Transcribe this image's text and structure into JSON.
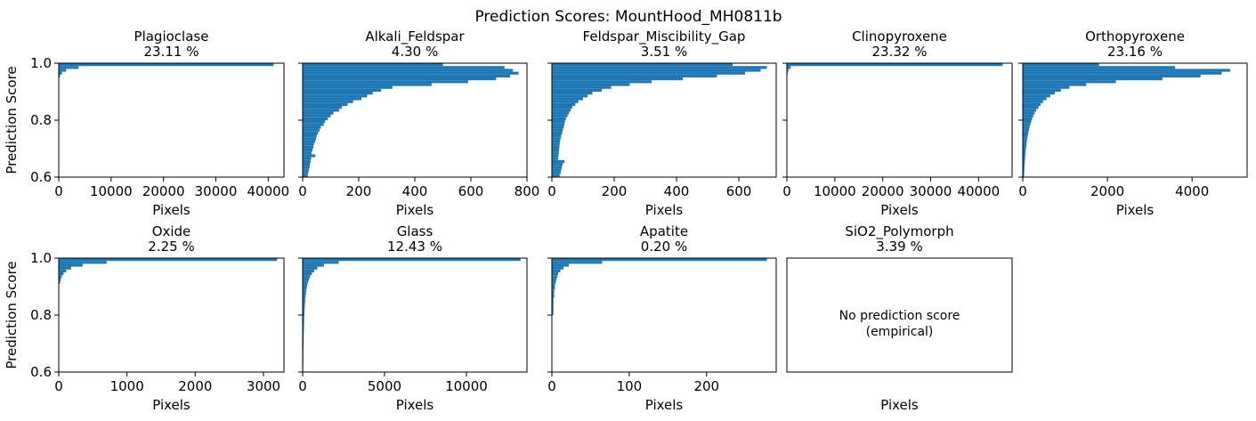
{
  "figure": {
    "suptitle": "Prediction Scores: MountHood_MH0811b",
    "color": "#1f77b4",
    "ylabel": "Prediction Score",
    "xlabel": "Pixels"
  },
  "chart_data": [
    {
      "type": "bar",
      "orientation": "horizontal",
      "title": "Plagioclase",
      "percent": "23.11 %",
      "xlabel": "Pixels",
      "ylabel": "Prediction Score",
      "ylim": [
        0.6,
        1.0
      ],
      "xlim": [
        0,
        43000
      ],
      "xticks": [
        0,
        10000,
        20000,
        30000,
        40000
      ],
      "yticks": [
        0.6,
        0.8,
        1.0
      ],
      "y": [
        0.995,
        0.985,
        0.975,
        0.965,
        0.955,
        0.945
      ],
      "values": [
        41000,
        3800,
        1400,
        600,
        250,
        80
      ]
    },
    {
      "type": "bar",
      "orientation": "horizontal",
      "title": "Alkali_Feldspar",
      "percent": "4.30 %",
      "xlabel": "Pixels",
      "ylabel": "",
      "ylim": [
        0.6,
        1.0
      ],
      "xlim": [
        0,
        800
      ],
      "xticks": [
        0,
        200,
        400,
        600,
        800
      ],
      "yticks": [
        0.6,
        0.8,
        1.0
      ],
      "y": [
        0.995,
        0.985,
        0.975,
        0.965,
        0.955,
        0.945,
        0.935,
        0.925,
        0.915,
        0.905,
        0.895,
        0.885,
        0.875,
        0.865,
        0.855,
        0.845,
        0.835,
        0.825,
        0.815,
        0.805,
        0.795,
        0.785,
        0.775,
        0.765,
        0.755,
        0.745,
        0.735,
        0.725,
        0.715,
        0.705,
        0.695,
        0.685,
        0.675,
        0.665,
        0.655,
        0.645,
        0.635,
        0.625,
        0.615,
        0.605
      ],
      "values": [
        500,
        720,
        750,
        770,
        740,
        690,
        590,
        460,
        320,
        280,
        250,
        230,
        210,
        180,
        160,
        140,
        130,
        110,
        100,
        90,
        80,
        75,
        65,
        60,
        55,
        50,
        48,
        45,
        40,
        38,
        35,
        32,
        45,
        30,
        28,
        26,
        25,
        22,
        20,
        18
      ]
    },
    {
      "type": "bar",
      "orientation": "horizontal",
      "title": "Feldspar_Miscibility_Gap",
      "percent": "3.51 %",
      "xlabel": "Pixels",
      "ylabel": "",
      "ylim": [
        0.6,
        1.0
      ],
      "xlim": [
        0,
        720
      ],
      "xticks": [
        0,
        200,
        400,
        600
      ],
      "yticks": [
        0.6,
        0.8,
        1.0
      ],
      "y": [
        0.995,
        0.985,
        0.975,
        0.965,
        0.955,
        0.945,
        0.935,
        0.925,
        0.915,
        0.905,
        0.895,
        0.885,
        0.875,
        0.865,
        0.855,
        0.845,
        0.835,
        0.825,
        0.815,
        0.805,
        0.795,
        0.785,
        0.775,
        0.765,
        0.755,
        0.745,
        0.735,
        0.725,
        0.715,
        0.705,
        0.695,
        0.685,
        0.675,
        0.665,
        0.655,
        0.645,
        0.635,
        0.625,
        0.615,
        0.605
      ],
      "values": [
        580,
        690,
        670,
        620,
        530,
        420,
        320,
        250,
        190,
        160,
        130,
        115,
        100,
        85,
        75,
        65,
        60,
        55,
        50,
        45,
        42,
        40,
        38,
        35,
        33,
        30,
        28,
        26,
        25,
        24,
        23,
        22,
        21,
        20,
        40,
        35,
        32,
        30,
        28,
        25
      ]
    },
    {
      "type": "bar",
      "orientation": "horizontal",
      "title": "Clinopyroxene",
      "percent": "23.32 %",
      "xlabel": "Pixels",
      "ylabel": "",
      "ylim": [
        0.6,
        1.0
      ],
      "xlim": [
        0,
        47000
      ],
      "xticks": [
        0,
        10000,
        20000,
        30000,
        40000
      ],
      "yticks": [
        0.6,
        0.8,
        1.0
      ],
      "xtick_labels": [
        "0",
        "10000",
        "20000",
        "30000",
        "40000"
      ],
      "y": [
        0.995,
        0.985,
        0.975,
        0.965,
        0.955,
        0.945
      ],
      "values": [
        45000,
        800,
        300,
        150,
        80,
        40
      ]
    },
    {
      "type": "bar",
      "orientation": "horizontal",
      "title": "Orthopyroxene",
      "percent": "23.16 %",
      "xlabel": "Pixels",
      "ylabel": "",
      "ylim": [
        0.6,
        1.0
      ],
      "xlim": [
        0,
        5300
      ],
      "xticks": [
        0,
        2000,
        4000
      ],
      "yticks": [
        0.6,
        0.8,
        1.0
      ],
      "y": [
        0.995,
        0.985,
        0.975,
        0.965,
        0.955,
        0.945,
        0.935,
        0.925,
        0.915,
        0.905,
        0.895,
        0.885,
        0.875,
        0.865,
        0.855,
        0.845,
        0.835,
        0.825,
        0.815,
        0.805,
        0.795,
        0.785,
        0.775,
        0.765,
        0.755,
        0.745,
        0.735,
        0.725,
        0.715,
        0.705,
        0.695,
        0.685,
        0.675,
        0.665,
        0.655,
        0.645,
        0.635,
        0.625,
        0.615,
        0.605
      ],
      "values": [
        1800,
        3600,
        4900,
        4700,
        4200,
        3300,
        2200,
        1500,
        1100,
        900,
        760,
        650,
        560,
        480,
        420,
        370,
        320,
        280,
        250,
        220,
        200,
        180,
        160,
        145,
        130,
        118,
        106,
        96,
        88,
        80,
        72,
        66,
        60,
        55,
        50,
        45,
        41,
        37,
        34,
        30
      ]
    },
    {
      "type": "bar",
      "orientation": "horizontal",
      "title": "Oxide",
      "percent": "2.25 %",
      "xlabel": "Pixels",
      "ylabel": "Prediction Score",
      "ylim": [
        0.6,
        1.0
      ],
      "xlim": [
        0,
        3300
      ],
      "xticks": [
        0,
        1000,
        2000,
        3000
      ],
      "yticks": [
        0.6,
        0.8,
        1.0
      ],
      "y": [
        0.995,
        0.985,
        0.975,
        0.965,
        0.955,
        0.945,
        0.935,
        0.925,
        0.915
      ],
      "values": [
        3200,
        700,
        350,
        180,
        110,
        70,
        45,
        30,
        20
      ]
    },
    {
      "type": "bar",
      "orientation": "horizontal",
      "title": "Glass",
      "percent": "12.43 %",
      "xlabel": "Pixels",
      "ylabel": "",
      "ylim": [
        0.6,
        1.0
      ],
      "xlim": [
        0,
        13700
      ],
      "xticks": [
        0,
        5000,
        10000
      ],
      "yticks": [
        0.6,
        0.8,
        1.0
      ],
      "y": [
        0.995,
        0.985,
        0.975,
        0.965,
        0.955,
        0.945,
        0.935,
        0.925,
        0.915,
        0.905,
        0.895,
        0.885,
        0.875,
        0.865,
        0.855,
        0.845,
        0.835,
        0.825,
        0.815,
        0.805,
        0.795,
        0.785,
        0.775,
        0.765,
        0.755,
        0.745,
        0.735,
        0.725,
        0.715,
        0.705,
        0.695,
        0.685,
        0.675,
        0.665,
        0.655,
        0.645,
        0.635,
        0.625,
        0.615,
        0.605
      ],
      "values": [
        13300,
        2200,
        1300,
        900,
        700,
        560,
        460,
        380,
        320,
        280,
        250,
        220,
        200,
        180,
        160,
        150,
        140,
        130,
        120,
        110,
        100,
        95,
        90,
        85,
        80,
        75,
        70,
        65,
        60,
        58,
        55,
        52,
        50,
        48,
        46,
        44,
        42,
        40,
        38,
        36
      ]
    },
    {
      "type": "bar",
      "orientation": "horizontal",
      "title": "Apatite",
      "percent": "0.20 %",
      "xlabel": "Pixels",
      "ylabel": "",
      "ylim": [
        0.6,
        1.0
      ],
      "xlim": [
        0,
        290
      ],
      "xticks": [
        0,
        100,
        200
      ],
      "yticks": [
        0.6,
        0.8,
        1.0
      ],
      "y": [
        0.995,
        0.985,
        0.975,
        0.965,
        0.955,
        0.945,
        0.935,
        0.925,
        0.915,
        0.905,
        0.895,
        0.885,
        0.875,
        0.865,
        0.855,
        0.845,
        0.835,
        0.825,
        0.815,
        0.805
      ],
      "values": [
        278,
        65,
        22,
        15,
        11,
        8,
        7,
        6,
        5,
        4,
        4,
        3,
        3,
        3,
        2,
        2,
        2,
        2,
        2,
        2
      ]
    },
    {
      "type": "bar",
      "orientation": "horizontal",
      "title": "SiO2_Polymorph",
      "percent": "3.39 %",
      "xlabel": "Pixels",
      "ylabel": "",
      "empty": true,
      "message": "No prediction score\n(empirical)",
      "y": [],
      "values": []
    }
  ]
}
